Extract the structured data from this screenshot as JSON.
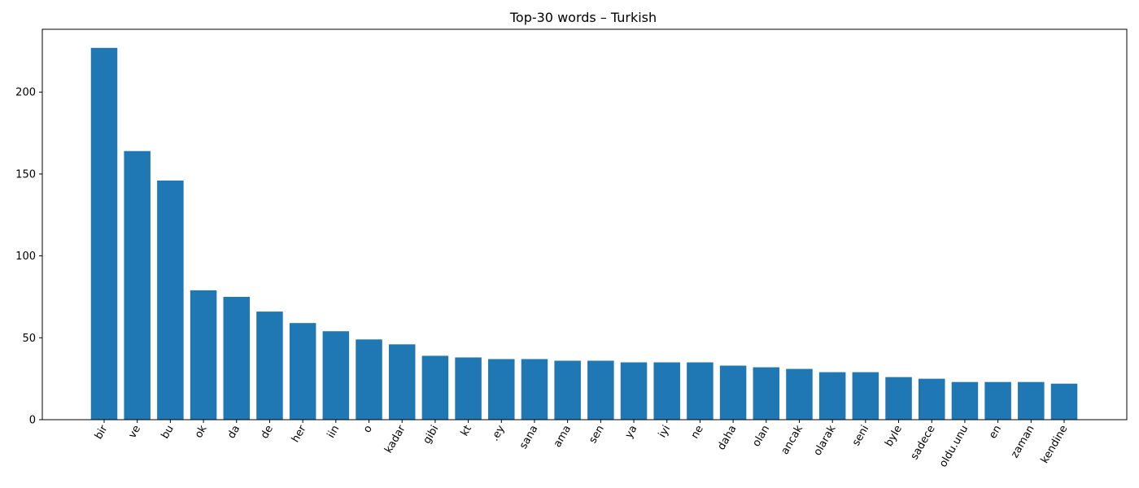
{
  "chart_data": {
    "type": "bar",
    "title": "Top-30 words – Turkish",
    "xlabel": "",
    "ylabel": "",
    "categories": [
      "bir",
      "ve",
      "bu",
      "ok",
      "da",
      "de",
      "her",
      "iin",
      "o",
      "kadar",
      "gibi",
      "kt",
      ".ey",
      "sana",
      "ama",
      "sen",
      "ya",
      "iyi",
      "ne",
      "daha",
      "olan",
      "ancak",
      "olarak",
      "seni",
      "byle",
      "sadece",
      "oldu.unu",
      "en",
      "zaman",
      "kendine"
    ],
    "values": [
      227,
      164,
      146,
      79,
      75,
      66,
      59,
      54,
      49,
      46,
      39,
      38,
      37,
      37,
      36,
      36,
      35,
      35,
      35,
      33,
      32,
      31,
      29,
      29,
      26,
      25,
      23,
      23,
      23,
      22
    ],
    "yticks": [
      0,
      50,
      100,
      150,
      200
    ],
    "ylim": [
      0,
      238.35
    ],
    "bar_color": "#1f77b4",
    "grid": false,
    "legend": "none"
  }
}
